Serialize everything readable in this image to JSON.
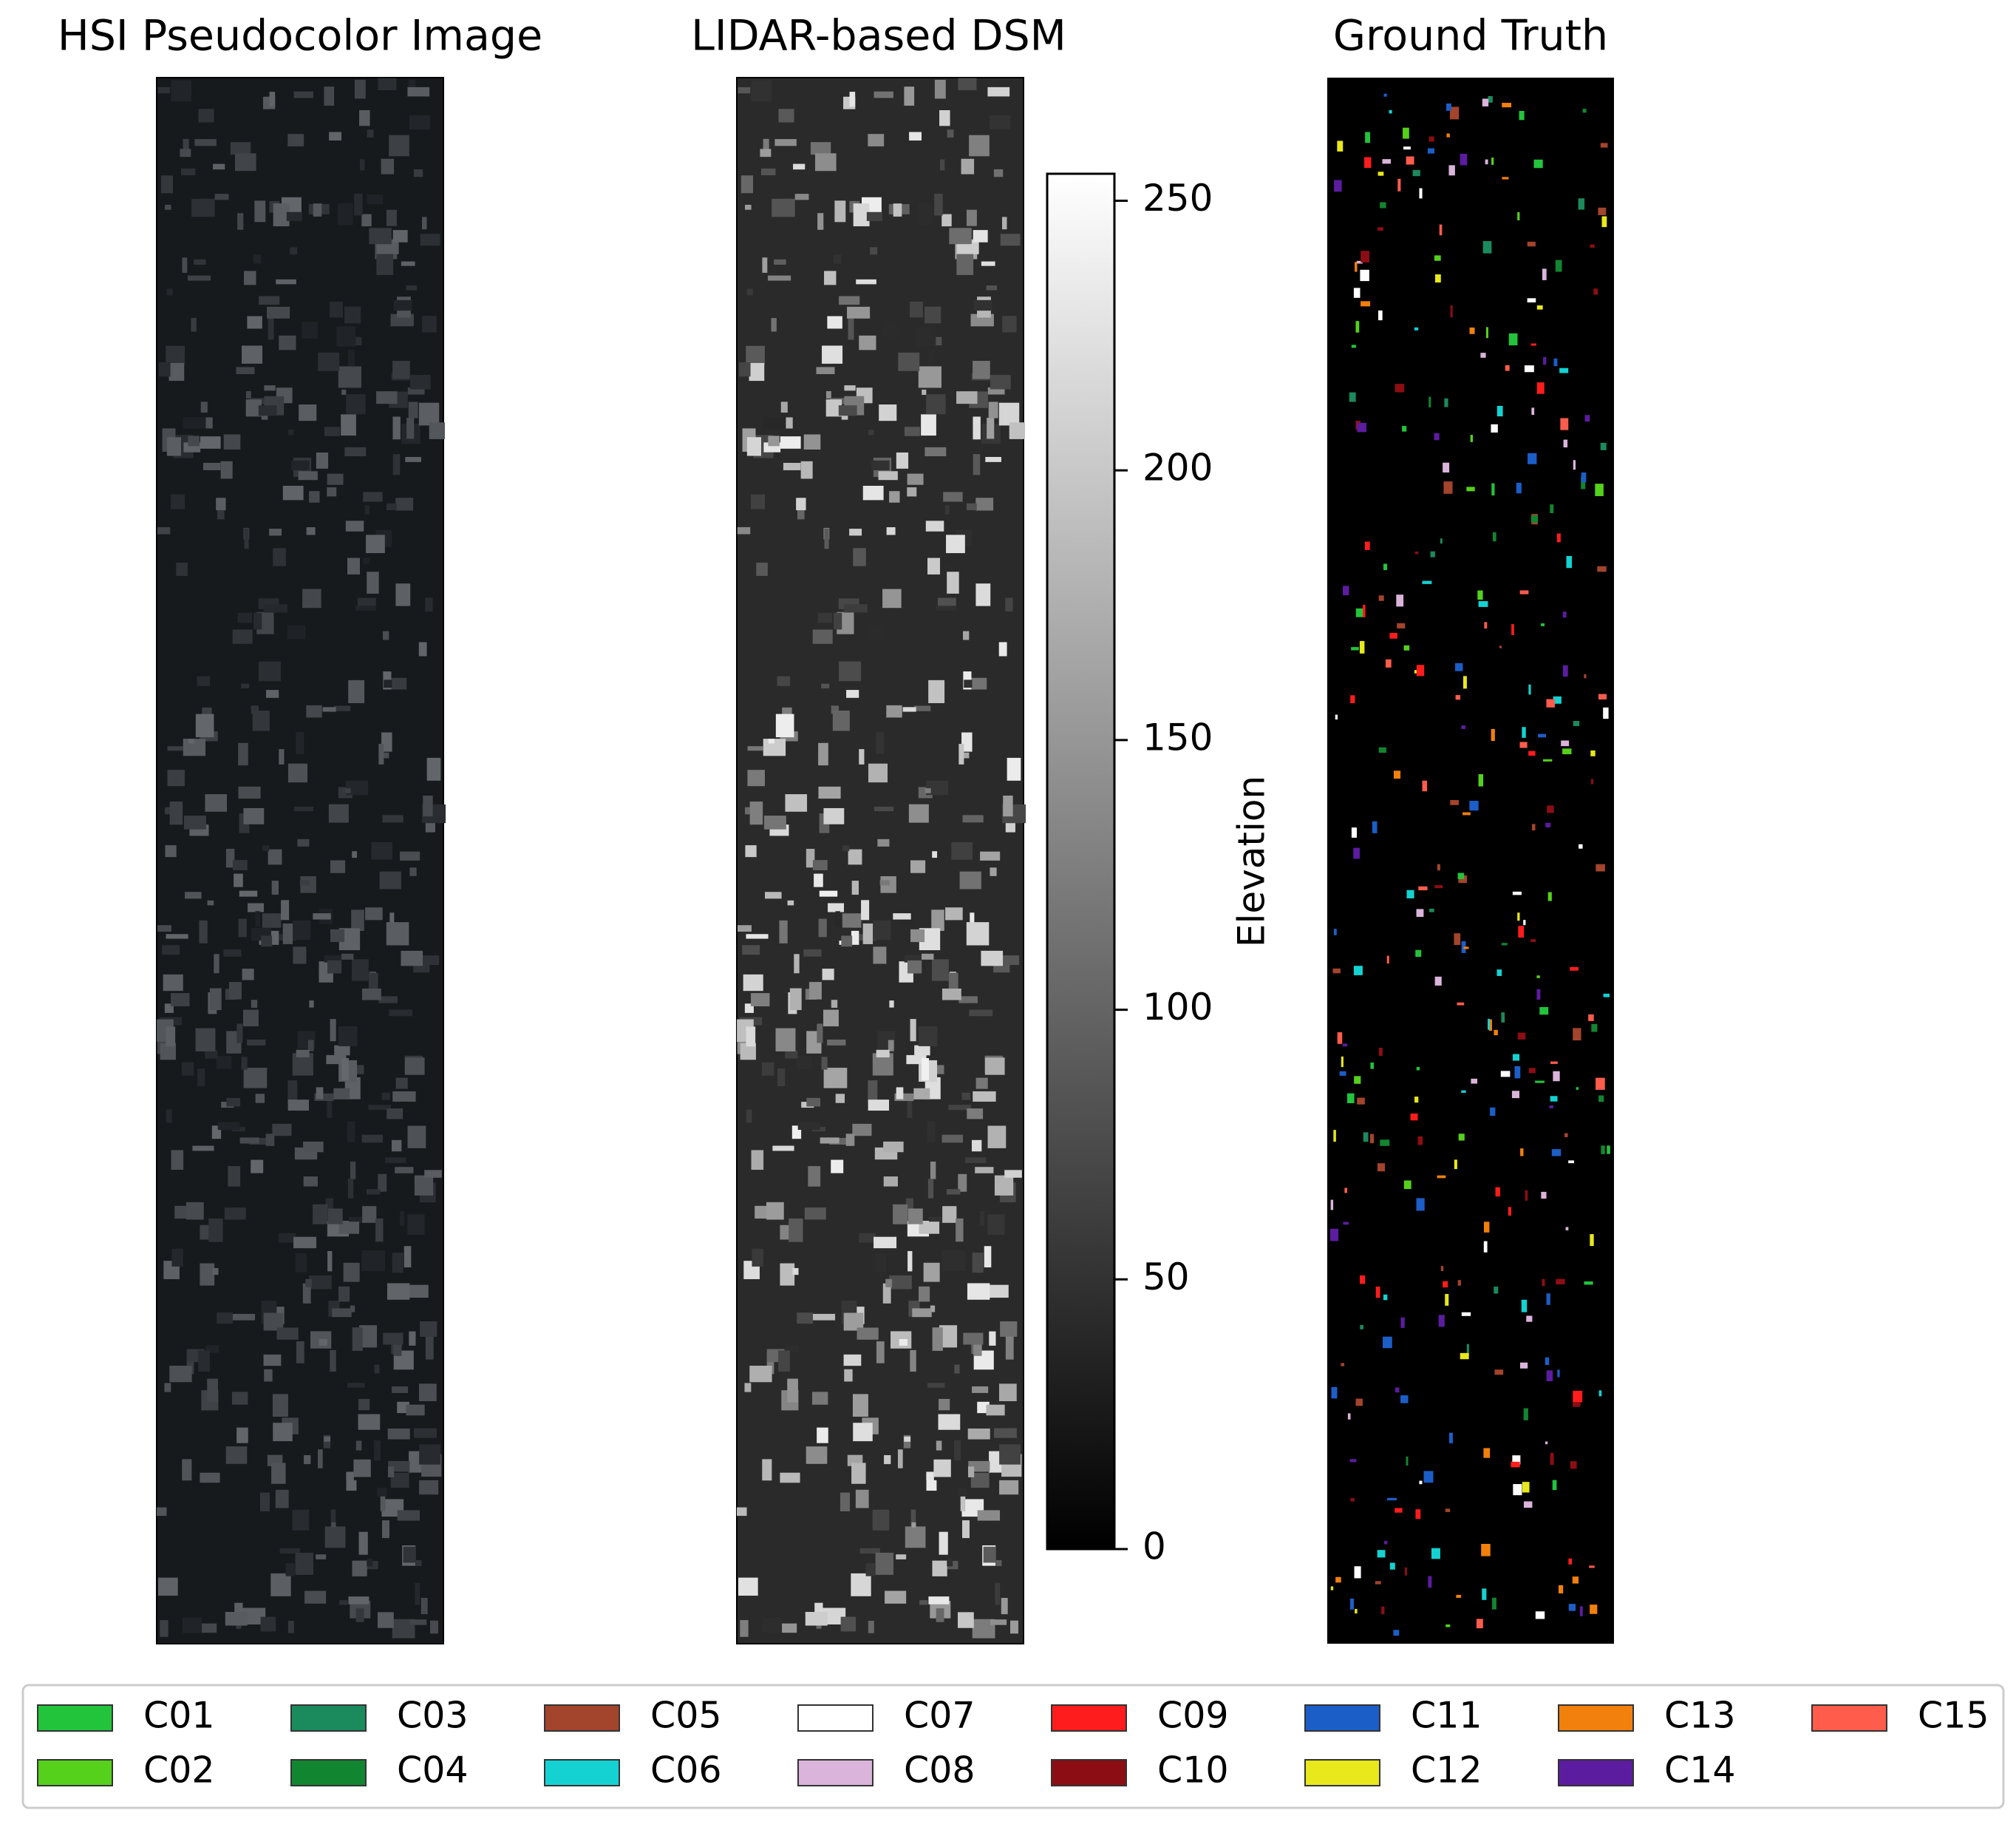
{
  "panels": [
    {
      "title": "HSI Pseudocolor Image"
    },
    {
      "title": "LIDAR-based DSM"
    },
    {
      "title": "Ground Truth"
    }
  ],
  "chart_data": {
    "type": "colorbar",
    "label": "Elevation",
    "ylim": [
      0,
      255
    ],
    "yticks": [
      0,
      50,
      100,
      150,
      200,
      250
    ]
  },
  "legend": [
    {
      "name": "C01",
      "color": "#22c43c"
    },
    {
      "name": "C02",
      "color": "#55d11c"
    },
    {
      "name": "C03",
      "color": "#1b8a5c"
    },
    {
      "name": "C04",
      "color": "#128530"
    },
    {
      "name": "C05",
      "color": "#a3442c"
    },
    {
      "name": "C06",
      "color": "#14d2d2"
    },
    {
      "name": "C07",
      "color": "#ffffff"
    },
    {
      "name": "C08",
      "color": "#dab4da"
    },
    {
      "name": "C09",
      "color": "#ff1c1c"
    },
    {
      "name": "C10",
      "color": "#8c0e14"
    },
    {
      "name": "C11",
      "color": "#1c5ec8"
    },
    {
      "name": "C12",
      "color": "#e8e81c"
    },
    {
      "name": "C13",
      "color": "#f2800c"
    },
    {
      "name": "C14",
      "color": "#5c1ca0"
    },
    {
      "name": "C15",
      "color": "#ff5c4c"
    }
  ]
}
